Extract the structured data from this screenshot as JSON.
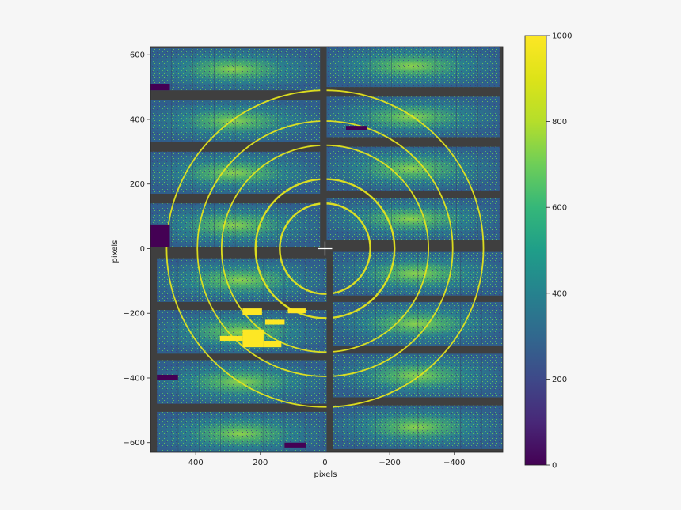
{
  "chart_data": {
    "type": "heatmap",
    "title": "",
    "xlabel": "pixels",
    "ylabel": "pixels",
    "xlim": [
      540,
      -550
    ],
    "ylim": [
      -630,
      625
    ],
    "x_ticks": [
      400,
      200,
      0,
      -200,
      -400
    ],
    "x_tick_labels": [
      "400",
      "200",
      "0",
      "−200",
      "−400"
    ],
    "y_ticks": [
      600,
      400,
      200,
      0,
      -200,
      -400,
      -600
    ],
    "y_tick_labels": [
      "600",
      "400",
      "200",
      "0",
      "−200",
      "−400",
      "−600"
    ],
    "colorbar": {
      "colormap": "viridis",
      "range": [
        0,
        1000
      ],
      "ticks": [
        1000,
        800,
        600,
        400,
        200,
        0
      ],
      "tick_labels": [
        "1000",
        "800",
        "600",
        "400",
        "200",
        "0"
      ]
    },
    "beam_center": [
      0,
      0
    ],
    "ring_radii": [
      140,
      215,
      320,
      395,
      490
    ],
    "background_color": "#3f3f3f",
    "grid": false
  }
}
